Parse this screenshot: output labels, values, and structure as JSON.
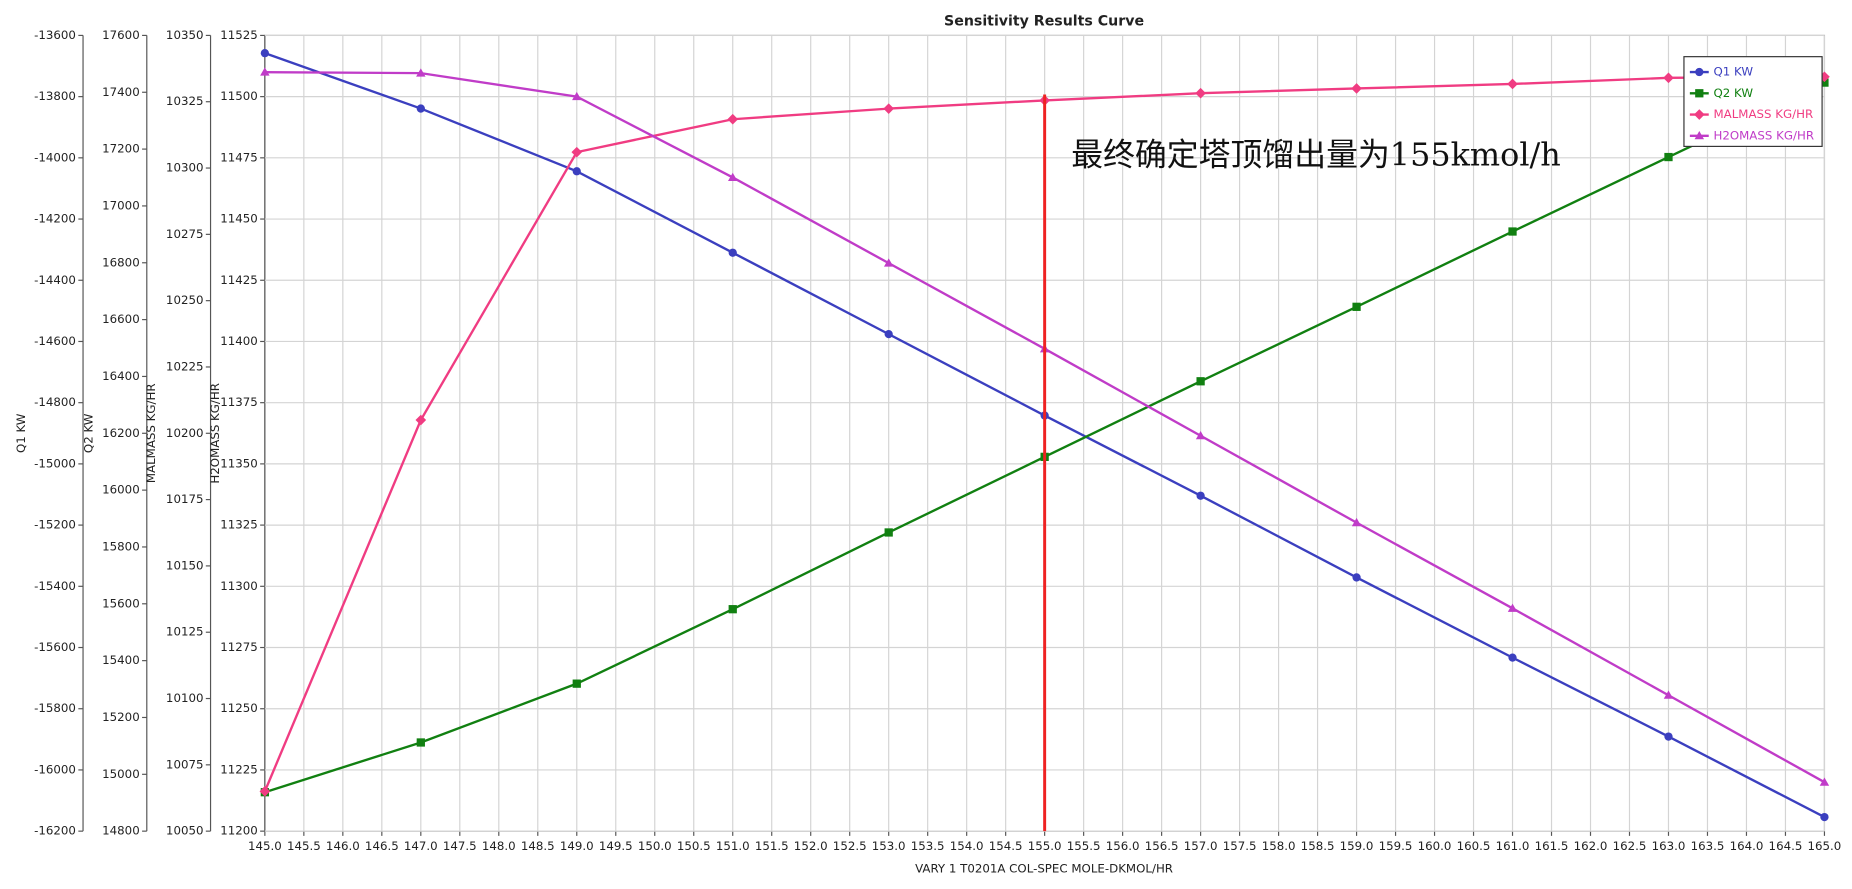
{
  "chart_data": {
    "type": "line",
    "title": "Sensitivity Results Curve",
    "xlabel": "VARY   1 T0201A COL-SPEC MOLE-DKMOL/HR",
    "x": [
      145,
      147,
      149,
      151,
      153,
      155,
      157,
      159,
      161,
      163,
      165
    ],
    "xlim": [
      145,
      165
    ],
    "xticks": [
      {
        "value": 145,
        "label": "145.0"
      },
      145.5,
      {
        "value": 146,
        "label": "146.0"
      },
      146.5,
      {
        "value": 147,
        "label": "147.0"
      },
      147.5,
      {
        "value": 148,
        "label": "148.0"
      },
      148.5,
      {
        "value": 149,
        "label": "149.0"
      },
      149.5,
      {
        "value": 150,
        "label": "150.0"
      },
      150.5,
      {
        "value": 151,
        "label": "151.0"
      },
      151.5,
      {
        "value": 152,
        "label": "152.0"
      },
      152.5,
      {
        "value": 153,
        "label": "153.0"
      },
      153.5,
      {
        "value": 154,
        "label": "154.0"
      },
      154.5,
      {
        "value": 155,
        "label": "155.0"
      },
      155.5,
      {
        "value": 156,
        "label": "156.0"
      },
      156.5,
      {
        "value": 157,
        "label": "157.0"
      },
      157.5,
      {
        "value": 158,
        "label": "158.0"
      },
      158.5,
      {
        "value": 159,
        "label": "159.0"
      },
      159.5,
      {
        "value": 160,
        "label": "160.0"
      },
      160.5,
      {
        "value": 161,
        "label": "161.0"
      },
      161.5,
      {
        "value": 162,
        "label": "162.0"
      },
      162.5,
      {
        "value": 163,
        "label": "163.0"
      },
      163.5,
      {
        "value": 164,
        "label": "164.0"
      },
      164.5,
      {
        "value": 165,
        "label": "165.0"
      }
    ],
    "grid": true,
    "legend": "upper right",
    "annotation": "最终确定塔顶馏出量为155kmol/h",
    "vline": {
      "x": 155,
      "color": "#ee2222"
    },
    "series": [
      {
        "name": "Q1 KW",
        "ylabel": "Q1 KW",
        "color": "#3b3fbf",
        "marker": "circle",
        "values": [
          -13658,
          -13839,
          -14044,
          -14310,
          -14576,
          -14842,
          -15104,
          -15371,
          -15633,
          -15891,
          -16154
        ],
        "ylim": [
          -16200,
          -13600
        ],
        "yticks": [
          -16200,
          -16000,
          -15800,
          -15600,
          -15400,
          -15200,
          -15000,
          -14800,
          -14600,
          -14400,
          -14200,
          -14000,
          -13800,
          -13600
        ]
      },
      {
        "name": "Q2 KW",
        "ylabel": "Q2 KW",
        "color": "#118011",
        "marker": "square",
        "values": [
          14937,
          15112,
          15319,
          15581,
          15851,
          16117,
          16383,
          16645,
          16910,
          17172,
          17434
        ],
        "ylim": [
          14800,
          17600
        ],
        "yticks": [
          14800,
          15000,
          15200,
          15400,
          15600,
          15800,
          16000,
          16200,
          16400,
          16600,
          16800,
          17000,
          17200,
          17400,
          17600
        ]
      },
      {
        "name": "MALMASS KG/HR",
        "ylabel": "MALMASS KG/HR",
        "color": "#f03c82",
        "marker": "diamond",
        "values": [
          10065,
          10205,
          10306,
          10318.4,
          10322.4,
          10325.5,
          10328.2,
          10330,
          10331.7,
          10334,
          10334.4
        ],
        "ylim": [
          10050,
          10350
        ],
        "yticks": [
          10050,
          10075,
          10100,
          10125,
          10150,
          10175,
          10200,
          10225,
          10250,
          10275,
          10300,
          10325,
          10350
        ]
      },
      {
        "name": "H2OMASS KG/HR",
        "ylabel": "H2OMASS KG/HR",
        "color": "#c03cc8",
        "marker": "triangle",
        "values": [
          11510,
          11509.6,
          11500,
          11467,
          11432,
          11397,
          11361.5,
          11326,
          11291,
          11255.5,
          11220
        ],
        "ylim": [
          11200,
          11525
        ],
        "yticks": [
          11200,
          11225,
          11250,
          11275,
          11300,
          11325,
          11350,
          11375,
          11400,
          11425,
          11450,
          11475,
          11500,
          11525
        ]
      }
    ]
  }
}
